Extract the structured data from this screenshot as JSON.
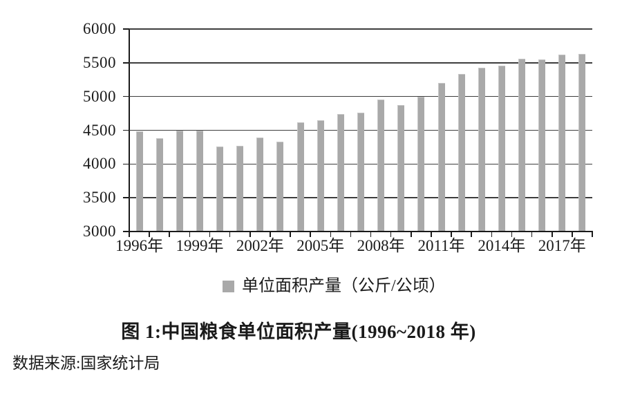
{
  "figure": {
    "title": "图 1:中国粮食单位面积产量(1996~2018 年)",
    "source": "数据来源:国家统计局"
  },
  "chart_data": {
    "type": "bar",
    "title": "图 1:中国粮食单位面积产量(1996~2018 年)",
    "legend": [
      "单位面积产量（公斤/公顷）"
    ],
    "legend_position": "bottom",
    "unit": "公斤/公顷",
    "categories": [
      "1996",
      "1997",
      "1998",
      "1999",
      "2000",
      "2001",
      "2002",
      "2003",
      "2004",
      "2005",
      "2006",
      "2007",
      "2008",
      "2009",
      "2010",
      "2011",
      "2012",
      "2013",
      "2014",
      "2015",
      "2016",
      "2017",
      "2018"
    ],
    "values": [
      4480,
      4380,
      4500,
      4495,
      4260,
      4270,
      4395,
      4335,
      4620,
      4645,
      4745,
      4760,
      4955,
      4870,
      4995,
      5200,
      5330,
      5430,
      5460,
      5560,
      5550,
      5620,
      5630
    ],
    "xlabel": "",
    "ylabel": "",
    "ylim": [
      3000,
      6000
    ],
    "yticks": [
      3000,
      3500,
      4000,
      4500,
      5000,
      5500,
      6000
    ],
    "xticks": [
      {
        "index": 0,
        "label": "1996年"
      },
      {
        "index": 3,
        "label": "1999年"
      },
      {
        "index": 6,
        "label": "2002年"
      },
      {
        "index": 9,
        "label": "2005年"
      },
      {
        "index": 12,
        "label": "2008年"
      },
      {
        "index": 15,
        "label": "2011年"
      },
      {
        "index": 18,
        "label": "2014年"
      },
      {
        "index": 21,
        "label": "2017年"
      }
    ],
    "grid": true,
    "colors": {
      "bar": "#a9a9a9",
      "bar_edge": "#c6c6c6",
      "grid": "#3d3d3d",
      "axis": "#1a1a1a",
      "text": "#1a1a1a",
      "background": "#ffffff"
    }
  }
}
